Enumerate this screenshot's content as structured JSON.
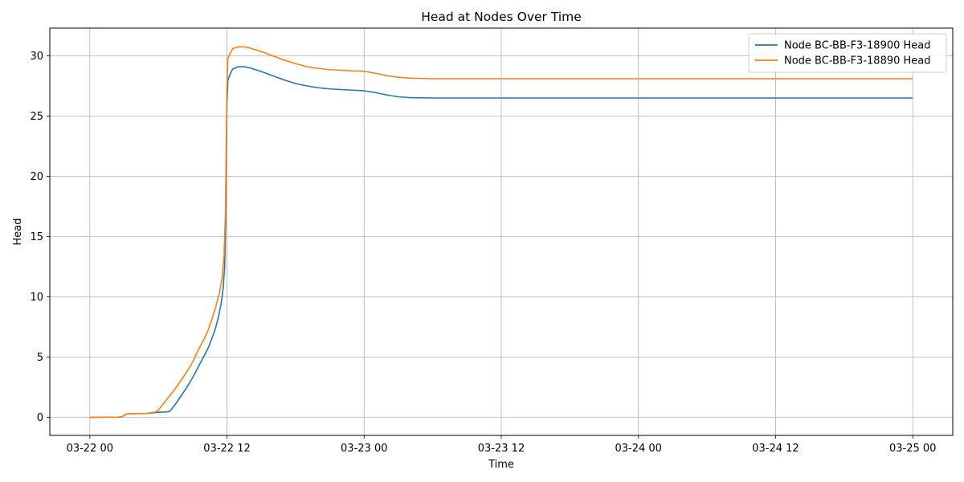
{
  "chart_data": {
    "type": "line",
    "title": "Head at Nodes Over Time",
    "xlabel": "Time",
    "ylabel": "Head",
    "xlim": [
      "2024-03-21 20:30",
      "2024-03-25 03:30"
    ],
    "ylim": [
      -1.5,
      32.3
    ],
    "x_ticks": [
      {
        "value": "2024-03-22 00:00",
        "label": "03-22 00"
      },
      {
        "value": "2024-03-22 12:00",
        "label": "03-22 12"
      },
      {
        "value": "2024-03-23 00:00",
        "label": "03-23 00"
      },
      {
        "value": "2024-03-23 12:00",
        "label": "03-23 12"
      },
      {
        "value": "2024-03-24 00:00",
        "label": "03-24 00"
      },
      {
        "value": "2024-03-24 12:00",
        "label": "03-24 12"
      },
      {
        "value": "2024-03-25 00:00",
        "label": "03-25 00"
      }
    ],
    "y_ticks": [
      0,
      5,
      10,
      15,
      20,
      25,
      30
    ],
    "grid": true,
    "legend": "top-right",
    "series": [
      {
        "name": "Node BC-BB-F3-18900 Head",
        "color": "#1f77b4",
        "points": [
          [
            "2024-03-22 00:00",
            0.0
          ],
          [
            "2024-03-22 02:30",
            0.02
          ],
          [
            "2024-03-22 02:50",
            0.05
          ],
          [
            "2024-03-22 03:10",
            0.25
          ],
          [
            "2024-03-22 03:30",
            0.3
          ],
          [
            "2024-03-22 05:00",
            0.32
          ],
          [
            "2024-03-22 06:00",
            0.42
          ],
          [
            "2024-03-22 06:45",
            0.45
          ],
          [
            "2024-03-22 07:00",
            0.5
          ],
          [
            "2024-03-22 07:30",
            1.1
          ],
          [
            "2024-03-22 08:00",
            1.8
          ],
          [
            "2024-03-22 08:30",
            2.5
          ],
          [
            "2024-03-22 09:00",
            3.3
          ],
          [
            "2024-03-22 09:30",
            4.2
          ],
          [
            "2024-03-22 10:00",
            5.1
          ],
          [
            "2024-03-22 10:20",
            5.7
          ],
          [
            "2024-03-22 10:40",
            6.5
          ],
          [
            "2024-03-22 11:00",
            7.4
          ],
          [
            "2024-03-22 11:15",
            8.3
          ],
          [
            "2024-03-22 11:30",
            9.5
          ],
          [
            "2024-03-22 11:40",
            10.7
          ],
          [
            "2024-03-22 11:48",
            12.5
          ],
          [
            "2024-03-22 11:53",
            16.0
          ],
          [
            "2024-03-22 11:56",
            21.0
          ],
          [
            "2024-03-22 12:00",
            26.0
          ],
          [
            "2024-03-22 12:05",
            28.0
          ],
          [
            "2024-03-22 12:20",
            28.6
          ],
          [
            "2024-03-22 12:30",
            28.9
          ],
          [
            "2024-03-22 13:00",
            29.1
          ],
          [
            "2024-03-22 13:30",
            29.1
          ],
          [
            "2024-03-22 14:00",
            29.0
          ],
          [
            "2024-03-22 15:00",
            28.7
          ],
          [
            "2024-03-22 16:00",
            28.35
          ],
          [
            "2024-03-22 17:00",
            28.0
          ],
          [
            "2024-03-22 18:00",
            27.7
          ],
          [
            "2024-03-22 19:00",
            27.5
          ],
          [
            "2024-03-22 20:00",
            27.35
          ],
          [
            "2024-03-22 21:00",
            27.25
          ],
          [
            "2024-03-22 22:00",
            27.2
          ],
          [
            "2024-03-22 23:00",
            27.15
          ],
          [
            "2024-03-23 00:00",
            27.1
          ],
          [
            "2024-03-23 01:00",
            26.95
          ],
          [
            "2024-03-23 02:00",
            26.75
          ],
          [
            "2024-03-23 03:00",
            26.6
          ],
          [
            "2024-03-23 04:00",
            26.53
          ],
          [
            "2024-03-23 06:00",
            26.5
          ],
          [
            "2024-03-23 12:00",
            26.5
          ],
          [
            "2024-03-24 00:00",
            26.5
          ],
          [
            "2024-03-24 12:00",
            26.5
          ],
          [
            "2024-03-25 00:00",
            26.5
          ]
        ]
      },
      {
        "name": "Node BC-BB-F3-18890 Head",
        "color": "#ff7f0e",
        "points": [
          [
            "2024-03-22 00:00",
            0.0
          ],
          [
            "2024-03-22 02:30",
            0.02
          ],
          [
            "2024-03-22 02:50",
            0.05
          ],
          [
            "2024-03-22 03:10",
            0.28
          ],
          [
            "2024-03-22 03:30",
            0.3
          ],
          [
            "2024-03-22 05:00",
            0.33
          ],
          [
            "2024-03-22 05:45",
            0.45
          ],
          [
            "2024-03-22 06:00",
            0.6
          ],
          [
            "2024-03-22 06:30",
            1.2
          ],
          [
            "2024-03-22 07:00",
            1.8
          ],
          [
            "2024-03-22 07:30",
            2.4
          ],
          [
            "2024-03-22 08:00",
            3.1
          ],
          [
            "2024-03-22 08:30",
            3.8
          ],
          [
            "2024-03-22 09:00",
            4.6
          ],
          [
            "2024-03-22 09:30",
            5.6
          ],
          [
            "2024-03-22 10:00",
            6.5
          ],
          [
            "2024-03-22 10:20",
            7.2
          ],
          [
            "2024-03-22 10:40",
            8.1
          ],
          [
            "2024-03-22 11:00",
            9.1
          ],
          [
            "2024-03-22 11:20",
            10.3
          ],
          [
            "2024-03-22 11:35",
            11.6
          ],
          [
            "2024-03-22 11:45",
            13.5
          ],
          [
            "2024-03-22 11:52",
            17.0
          ],
          [
            "2024-03-22 11:56",
            22.0
          ],
          [
            "2024-03-22 12:00",
            27.5
          ],
          [
            "2024-03-22 12:05",
            29.8
          ],
          [
            "2024-03-22 12:20",
            30.3
          ],
          [
            "2024-03-22 12:30",
            30.6
          ],
          [
            "2024-03-22 13:00",
            30.75
          ],
          [
            "2024-03-22 13:30",
            30.75
          ],
          [
            "2024-03-22 14:00",
            30.65
          ],
          [
            "2024-03-22 15:00",
            30.35
          ],
          [
            "2024-03-22 16:00",
            30.0
          ],
          [
            "2024-03-22 17:00",
            29.65
          ],
          [
            "2024-03-22 18:00",
            29.35
          ],
          [
            "2024-03-22 19:00",
            29.1
          ],
          [
            "2024-03-22 20:00",
            28.95
          ],
          [
            "2024-03-22 21:00",
            28.85
          ],
          [
            "2024-03-22 22:00",
            28.8
          ],
          [
            "2024-03-22 23:00",
            28.75
          ],
          [
            "2024-03-23 00:00",
            28.72
          ],
          [
            "2024-03-23 01:00",
            28.55
          ],
          [
            "2024-03-23 02:00",
            28.35
          ],
          [
            "2024-03-23 03:00",
            28.22
          ],
          [
            "2024-03-23 04:00",
            28.15
          ],
          [
            "2024-03-23 06:00",
            28.1
          ],
          [
            "2024-03-23 12:00",
            28.1
          ],
          [
            "2024-03-24 00:00",
            28.1
          ],
          [
            "2024-03-24 12:00",
            28.1
          ],
          [
            "2024-03-25 00:00",
            28.1
          ]
        ]
      }
    ]
  }
}
